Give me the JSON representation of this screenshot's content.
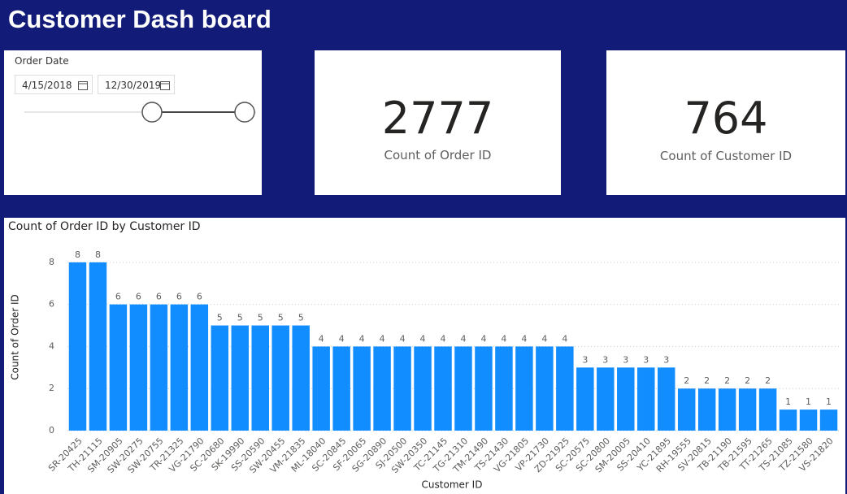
{
  "header": {
    "title": "Customer Dash board"
  },
  "slicer": {
    "title": "Order Date",
    "start": "4/15/2018",
    "end": "12/30/2019"
  },
  "cards": [
    {
      "value": 2777,
      "label": "Count of Order ID"
    },
    {
      "value": 764,
      "label": "Count of Customer ID"
    }
  ],
  "chart_data": {
    "type": "bar",
    "title": "Count of Order ID by Customer ID",
    "x_label": "Customer ID",
    "y_label": "Count of Order ID",
    "categories": [
      "SR-20425",
      "TH-21115",
      "SM-20905",
      "SW-20275",
      "SW-20755",
      "TR-21325",
      "VG-21790",
      "SC-20680",
      "SK-19990",
      "SS-20590",
      "SW-20455",
      "VM-21835",
      "ML-18040",
      "SC-20845",
      "SF-20065",
      "SG-20890",
      "SJ-20500",
      "SW-20350",
      "TC-21145",
      "TG-21310",
      "TM-21490",
      "TS-21430",
      "VG-21805",
      "VP-21730",
      "ZD-21925",
      "SC-20575",
      "SC-20800",
      "SM-20005",
      "SS-20410",
      "YC-21895",
      "RH-19555",
      "SV-20815",
      "TB-21190",
      "TB-21595",
      "TT-21265",
      "TS-21085",
      "TZ-21580",
      "VS-21820"
    ],
    "values": [
      8,
      8,
      6,
      6,
      6,
      6,
      6,
      5,
      5,
      5,
      5,
      5,
      4,
      4,
      4,
      4,
      4,
      4,
      4,
      4,
      4,
      4,
      4,
      4,
      4,
      3,
      3,
      3,
      3,
      3,
      2,
      2,
      2,
      2,
      2,
      1,
      1,
      1
    ],
    "color": "#118dff",
    "ylim": [
      0,
      9
    ],
    "yticks": [
      0,
      2,
      4,
      6,
      8
    ],
    "grid": true
  }
}
